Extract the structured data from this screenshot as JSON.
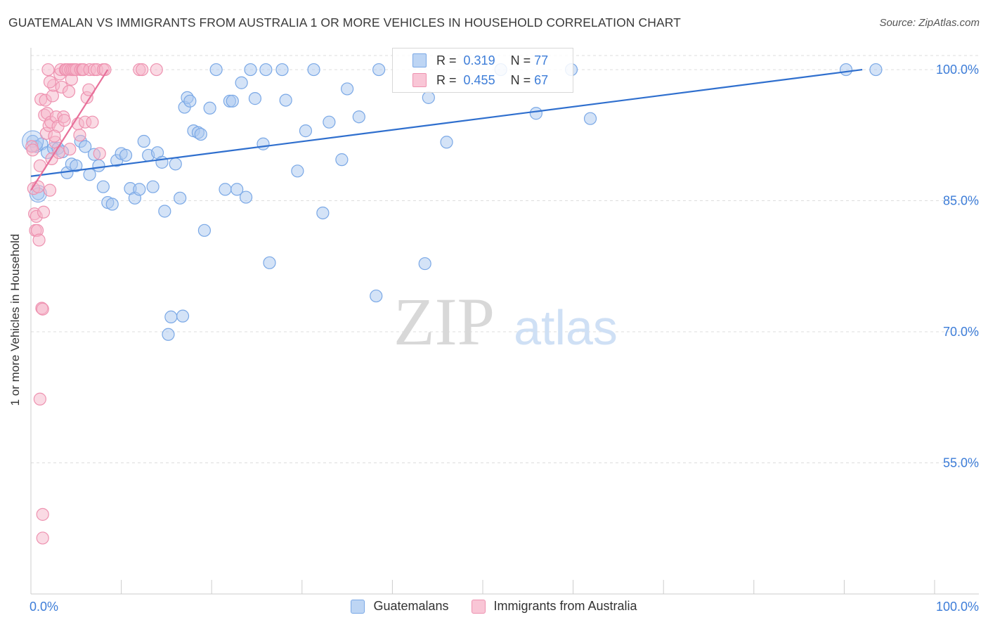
{
  "title": "GUATEMALAN VS IMMIGRANTS FROM AUSTRALIA 1 OR MORE VEHICLES IN HOUSEHOLD CORRELATION CHART",
  "source": "Source: ZipAtlas.com",
  "watermark": {
    "zip": "ZIP",
    "atlas": "atlas"
  },
  "legend_top": {
    "rows": [
      {
        "r_label": "R =",
        "r_value": "0.319",
        "n_label": "N =",
        "n_value": "77"
      },
      {
        "r_label": "R =",
        "r_value": "0.455",
        "n_label": "N =",
        "n_value": "67"
      }
    ]
  },
  "legend_bottom": {
    "series1": "Guatemalans",
    "series2": "Immigrants from Australia"
  },
  "colors": {
    "blue_fill": "#a9c8f0",
    "blue_stroke": "#7aa8e6",
    "blue_line": "#2f6fce",
    "pink_fill": "#f6b6ca",
    "pink_stroke": "#ee92b0",
    "pink_line": "#e8709a",
    "axis_text": "#3d7dd8",
    "grid": "#dddddd"
  },
  "chart_data": {
    "type": "scatter",
    "title": "GUATEMALAN VS IMMIGRANTS FROM AUSTRALIA 1 OR MORE VEHICLES IN HOUSEHOLD CORRELATION CHART",
    "xlabel": "",
    "ylabel": "1 or more Vehicles in Household",
    "xlim": [
      0,
      100
    ],
    "ylim": [
      40,
      102.5
    ],
    "x_tick_labels": [
      "0.0%",
      "100.0%"
    ],
    "y_ticks": [
      55,
      70,
      85,
      100
    ],
    "y_tick_labels": [
      "55.0%",
      "70.0%",
      "85.0%",
      "100.0%"
    ],
    "grid": true,
    "legend_position": "top-center",
    "series": [
      {
        "name": "Guatemalans",
        "R": 0.319,
        "N": 77,
        "trend": {
          "x0": 0.0,
          "y0": 87.8,
          "x1": 92.0,
          "y1": 100.0
        },
        "points": [
          [
            0.2,
            91.8
          ],
          [
            0.6,
            91.2
          ],
          [
            0.8,
            85.8
          ],
          [
            1.2,
            91.5
          ],
          [
            1.8,
            90.5
          ],
          [
            2.5,
            91.0
          ],
          [
            3.0,
            91.0
          ],
          [
            3.5,
            90.6
          ],
          [
            4.0,
            88.2
          ],
          [
            4.5,
            89.2
          ],
          [
            5.0,
            89.0
          ],
          [
            5.5,
            91.8
          ],
          [
            6.0,
            91.2
          ],
          [
            6.5,
            88.0
          ],
          [
            7.0,
            90.3
          ],
          [
            7.5,
            89.0
          ],
          [
            8.0,
            86.6
          ],
          [
            8.5,
            84.8
          ],
          [
            9.0,
            84.6
          ],
          [
            9.5,
            89.6
          ],
          [
            10.0,
            90.4
          ],
          [
            10.5,
            90.2
          ],
          [
            11.0,
            86.4
          ],
          [
            11.5,
            85.3
          ],
          [
            12.0,
            86.3
          ],
          [
            12.5,
            91.8
          ],
          [
            13.0,
            90.2
          ],
          [
            13.5,
            86.6
          ],
          [
            14.0,
            90.5
          ],
          [
            14.5,
            89.4
          ],
          [
            14.8,
            83.8
          ],
          [
            15.2,
            69.7
          ],
          [
            15.5,
            71.7
          ],
          [
            16.0,
            89.2
          ],
          [
            16.5,
            85.3
          ],
          [
            16.8,
            71.8
          ],
          [
            17.0,
            95.7
          ],
          [
            17.3,
            96.8
          ],
          [
            17.6,
            96.4
          ],
          [
            18.0,
            93.0
          ],
          [
            18.5,
            92.8
          ],
          [
            18.8,
            92.6
          ],
          [
            19.2,
            81.6
          ],
          [
            19.8,
            95.6
          ],
          [
            20.5,
            100.0
          ],
          [
            21.5,
            86.3
          ],
          [
            22.0,
            96.4
          ],
          [
            22.3,
            96.4
          ],
          [
            22.8,
            86.3
          ],
          [
            23.3,
            98.5
          ],
          [
            23.8,
            85.4
          ],
          [
            24.3,
            100.0
          ],
          [
            24.8,
            96.7
          ],
          [
            25.7,
            91.5
          ],
          [
            26.0,
            100.0
          ],
          [
            26.4,
            77.9
          ],
          [
            27.8,
            100.0
          ],
          [
            28.2,
            96.5
          ],
          [
            29.5,
            88.4
          ],
          [
            30.4,
            93.0
          ],
          [
            31.3,
            100.0
          ],
          [
            32.3,
            83.6
          ],
          [
            33.0,
            94.0
          ],
          [
            34.4,
            89.7
          ],
          [
            35.0,
            97.8
          ],
          [
            36.3,
            94.6
          ],
          [
            38.2,
            74.1
          ],
          [
            38.5,
            100.0
          ],
          [
            43.6,
            77.8
          ],
          [
            46.0,
            91.7
          ],
          [
            52.0,
            100.0
          ],
          [
            55.9,
            95.0
          ],
          [
            59.8,
            100.0
          ],
          [
            61.9,
            94.4
          ],
          [
            90.2,
            100.0
          ],
          [
            93.5,
            100.0
          ],
          [
            44.0,
            96.8
          ]
        ]
      },
      {
        "name": "Immigrants from Australia",
        "R": 0.455,
        "N": 67,
        "trend": {
          "x0": 0.0,
          "y0": 86.2,
          "x1": 8.5,
          "y1": 100.0
        },
        "points": [
          [
            0.1,
            91.2
          ],
          [
            0.2,
            90.8
          ],
          [
            0.3,
            86.4
          ],
          [
            0.4,
            83.5
          ],
          [
            0.5,
            81.6
          ],
          [
            0.6,
            83.2
          ],
          [
            0.7,
            81.6
          ],
          [
            0.9,
            80.5
          ],
          [
            1.0,
            89.0
          ],
          [
            1.1,
            96.6
          ],
          [
            1.2,
            72.7
          ],
          [
            1.3,
            72.6
          ],
          [
            1.4,
            83.7
          ],
          [
            1.5,
            94.8
          ],
          [
            1.6,
            96.5
          ],
          [
            1.7,
            92.7
          ],
          [
            1.8,
            95.0
          ],
          [
            2.0,
            93.6
          ],
          [
            2.1,
            86.2
          ],
          [
            2.2,
            94.0
          ],
          [
            2.3,
            89.8
          ],
          [
            2.4,
            97.0
          ],
          [
            2.5,
            98.2
          ],
          [
            2.7,
            91.7
          ],
          [
            2.8,
            94.6
          ],
          [
            3.0,
            93.5
          ],
          [
            3.1,
            90.5
          ],
          [
            3.2,
            99.5
          ],
          [
            3.3,
            100.0
          ],
          [
            3.4,
            98.0
          ],
          [
            3.6,
            94.6
          ],
          [
            3.8,
            100.0
          ],
          [
            3.9,
            100.0
          ],
          [
            4.1,
            100.0
          ],
          [
            4.2,
            97.5
          ],
          [
            4.4,
            100.0
          ],
          [
            4.5,
            98.9
          ],
          [
            4.6,
            100.0
          ],
          [
            4.8,
            100.0
          ],
          [
            5.0,
            100.0
          ],
          [
            5.2,
            93.8
          ],
          [
            5.4,
            92.5
          ],
          [
            5.5,
            100.0
          ],
          [
            5.7,
            100.0
          ],
          [
            5.8,
            100.0
          ],
          [
            6.0,
            94.0
          ],
          [
            6.2,
            96.8
          ],
          [
            6.5,
            100.0
          ],
          [
            6.8,
            94.0
          ],
          [
            7.0,
            100.0
          ],
          [
            7.3,
            100.0
          ],
          [
            7.6,
            90.4
          ],
          [
            8.0,
            100.0
          ],
          [
            8.2,
            100.0
          ],
          [
            12.0,
            100.0
          ],
          [
            12.3,
            100.0
          ],
          [
            13.9,
            100.0
          ],
          [
            1.0,
            62.3
          ],
          [
            1.3,
            49.1
          ],
          [
            1.3,
            46.4
          ],
          [
            0.8,
            86.6
          ],
          [
            2.1,
            98.6
          ],
          [
            6.4,
            97.7
          ],
          [
            3.7,
            94.2
          ],
          [
            2.6,
            92.4
          ],
          [
            1.9,
            100.0
          ],
          [
            4.3,
            90.9
          ]
        ]
      }
    ]
  }
}
